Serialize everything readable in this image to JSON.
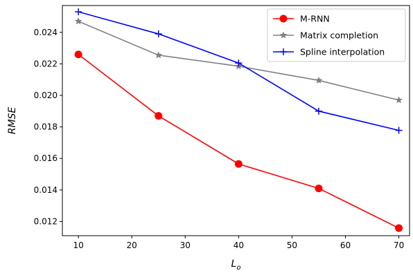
{
  "chart_data": {
    "type": "line",
    "xlabel": "L",
    "xlabel_subscript": "o",
    "ylabel": "RMSE",
    "x": [
      10,
      25,
      40,
      55,
      70
    ],
    "xlim": [
      7,
      72
    ],
    "ylim": [
      0.0111,
      0.0257
    ],
    "xticks": [
      10,
      20,
      30,
      40,
      50,
      60,
      70
    ],
    "yticks": [
      0.012,
      0.014,
      0.016,
      0.018,
      0.02,
      0.022,
      0.024
    ],
    "ytick_labels": [
      "0.012",
      "0.014",
      "0.016",
      "0.018",
      "0.020",
      "0.022",
      "0.024"
    ],
    "grid": false,
    "legend_position": "top-right",
    "series": [
      {
        "name": "M-RNN",
        "color": "#ff0000",
        "marker": "circle",
        "values": [
          0.0226,
          0.0187,
          0.01565,
          0.0141,
          0.01158
        ]
      },
      {
        "name": "Matrix completion",
        "color": "#808080",
        "marker": "star",
        "values": [
          0.0247,
          0.02255,
          0.02185,
          0.02095,
          0.0197
        ]
      },
      {
        "name": "Spline interpolation",
        "color": "#0000ff",
        "marker": "plus",
        "values": [
          0.0253,
          0.0239,
          0.02205,
          0.019,
          0.01778
        ]
      }
    ]
  }
}
